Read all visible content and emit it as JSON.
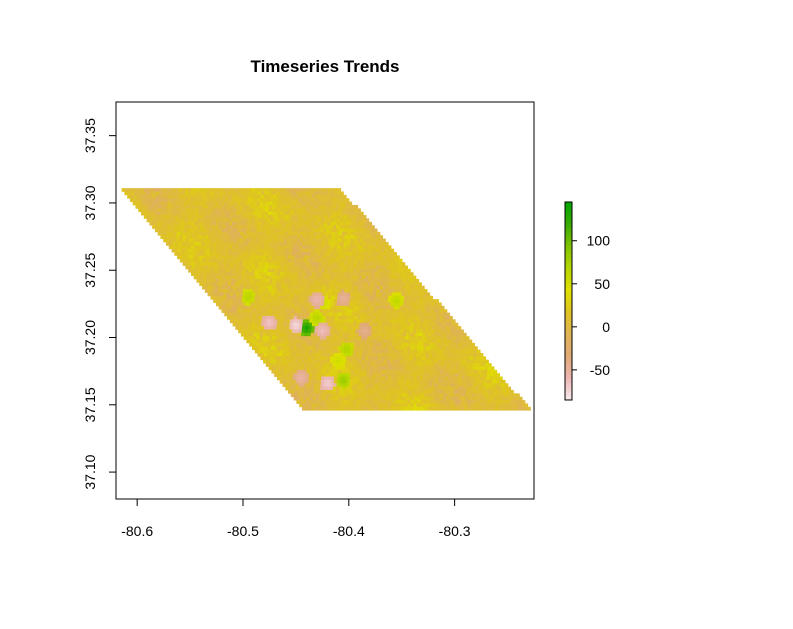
{
  "chart_data": {
    "type": "heatmap",
    "title": "Timeseries Trends",
    "xlabel": "",
    "ylabel": "",
    "xlim": [
      -80.62,
      -80.225
    ],
    "ylim": [
      37.08,
      37.375
    ],
    "x_ticks": [
      -80.6,
      -80.5,
      -80.4,
      -80.3
    ],
    "x_tick_labels": [
      "-80.6",
      "-80.5",
      "-80.4",
      "-80.3"
    ],
    "y_ticks": [
      37.1,
      37.15,
      37.2,
      37.25,
      37.3,
      37.35
    ],
    "y_tick_labels": [
      "37.10",
      "37.15",
      "37.20",
      "37.25",
      "37.30",
      "37.35"
    ],
    "grid": false,
    "legend_position": "right",
    "region": {
      "shape": "parallelogram",
      "corners_lonlat": [
        [
          -80.616,
          37.311
        ],
        [
          -80.408,
          37.311
        ],
        [
          -80.228,
          37.146
        ],
        [
          -80.443,
          37.146
        ]
      ],
      "dominant_range": [
        -20,
        40
      ]
    },
    "hotspots": [
      {
        "lon": -80.44,
        "lat": 37.207,
        "value": 140
      },
      {
        "lon": -80.43,
        "lat": 37.214,
        "value": 70
      },
      {
        "lon": -80.402,
        "lat": 37.191,
        "value": 75
      },
      {
        "lon": -80.405,
        "lat": 37.168,
        "value": 85
      },
      {
        "lon": -80.355,
        "lat": 37.227,
        "value": 65
      },
      {
        "lon": -80.495,
        "lat": 37.23,
        "value": 70
      },
      {
        "lon": -80.425,
        "lat": 37.226,
        "value": 60
      },
      {
        "lon": -80.41,
        "lat": 37.183,
        "value": 55
      },
      {
        "lon": -80.45,
        "lat": 37.209,
        "value": -80
      },
      {
        "lon": -80.475,
        "lat": 37.211,
        "value": -70
      },
      {
        "lon": -80.425,
        "lat": 37.205,
        "value": -65
      },
      {
        "lon": -80.42,
        "lat": 37.166,
        "value": -75
      },
      {
        "lon": -80.43,
        "lat": 37.228,
        "value": -60
      },
      {
        "lon": -80.445,
        "lat": 37.17,
        "value": -55
      },
      {
        "lon": -80.405,
        "lat": 37.229,
        "value": -50
      },
      {
        "lon": -80.385,
        "lat": 37.205,
        "value": -45
      }
    ],
    "colorbar": {
      "min": -85,
      "max": 145,
      "ticks": [
        -50,
        0,
        50,
        100
      ],
      "tick_labels": [
        "-50",
        "0",
        "50",
        "100"
      ],
      "colors": [
        "#f5eaea",
        "#ecb7b5",
        "#e0aa76",
        "#dfb355",
        "#dfc421",
        "#dfe000",
        "#b6d600",
        "#7fc300",
        "#3aaa00",
        "#00a600"
      ]
    }
  }
}
